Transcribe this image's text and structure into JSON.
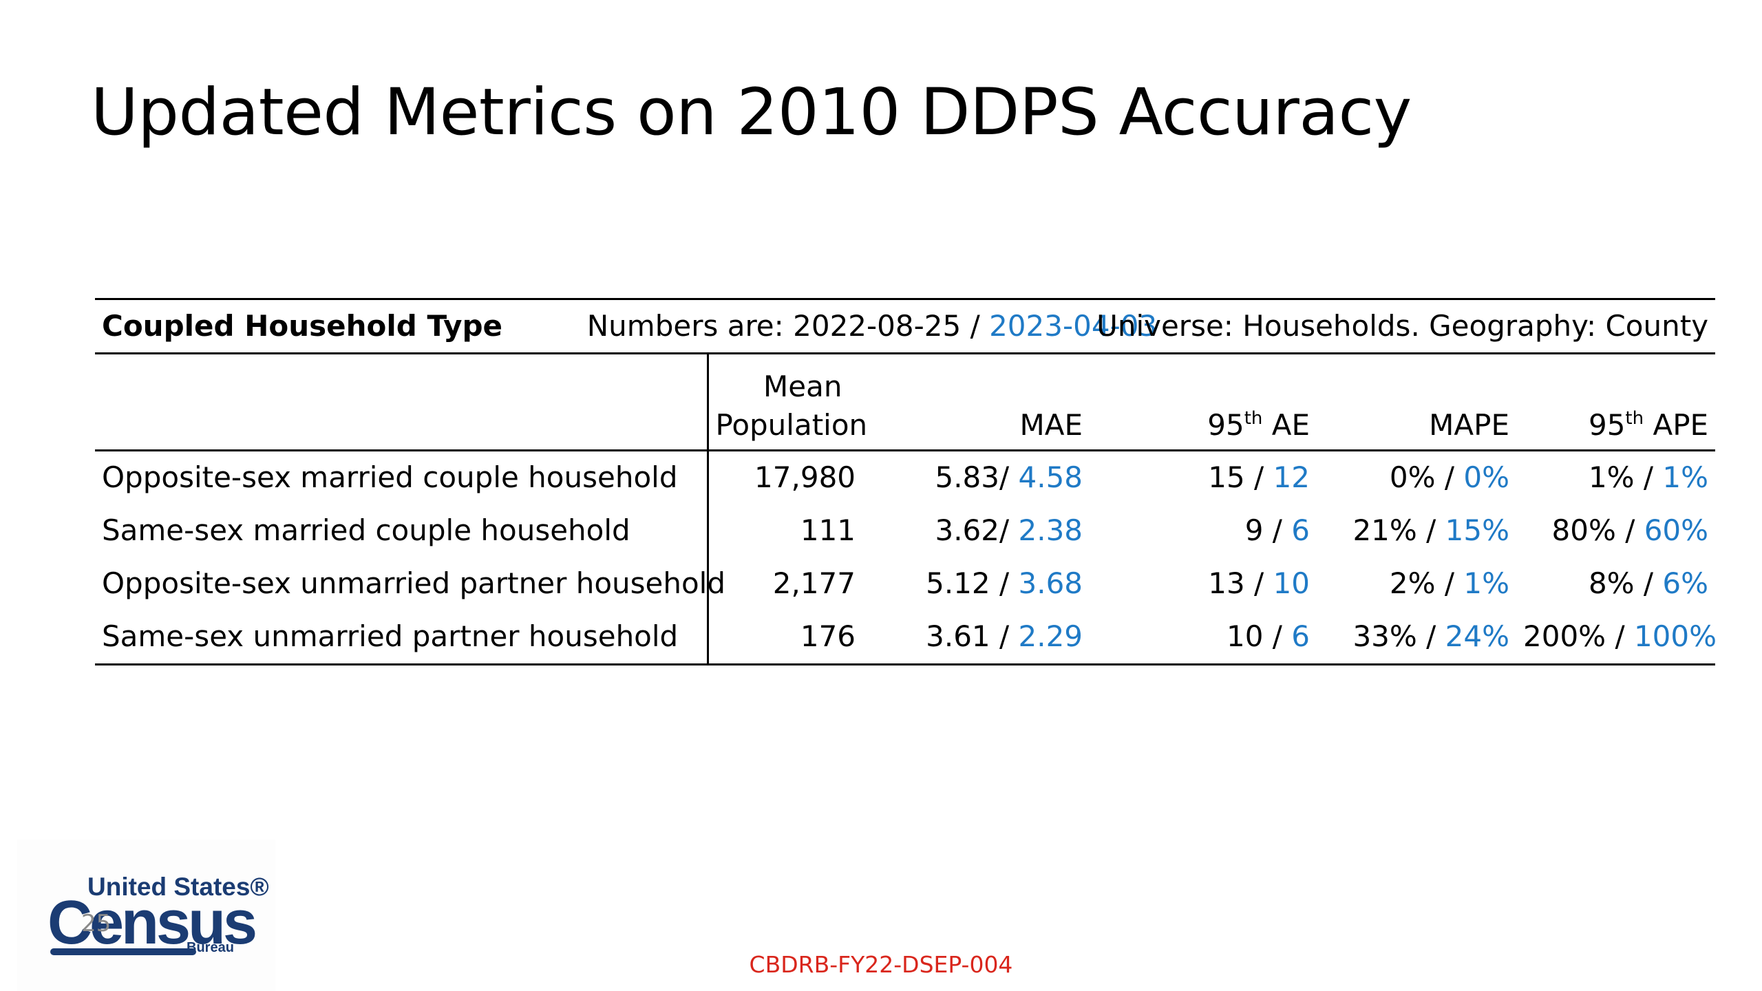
{
  "title": "Updated Metrics on 2010 DDPS Accuracy",
  "table": {
    "header": {
      "type_label": "Coupled Household Type",
      "numbers_prefix": "Numbers are: 2022-08-25 / ",
      "numbers_new_date": "2023-04-03",
      "universe": "Universe: Households. Geography: County"
    },
    "columns": {
      "mean_line1": "Mean",
      "mean_line2": "Population",
      "mae": "MAE",
      "ae95_num": "95",
      "ae95_sup": "th",
      "ae95_label": " AE",
      "mape": "MAPE",
      "ape95_num": "95",
      "ape95_sup": "th",
      "ape95_label": " APE"
    },
    "rows": [
      {
        "type": "Opposite-sex married couple household",
        "mean_population": "17,980",
        "mae_old": "5.83/ ",
        "mae_new": "4.58",
        "ae95_old": "15 / ",
        "ae95_new": "12",
        "mape_old": "0% / ",
        "mape_new": "0%",
        "ape95_old": "1% / ",
        "ape95_new": "1%"
      },
      {
        "type": "Same-sex married couple household",
        "mean_population": "111",
        "mae_old": "3.62/ ",
        "mae_new": "2.38",
        "ae95_old": "9 / ",
        "ae95_new": "6",
        "mape_old": "21% / ",
        "mape_new": "15%",
        "ape95_old": "80% / ",
        "ape95_new": "60%"
      },
      {
        "type": "Opposite-sex unmarried partner household",
        "mean_population": "2,177",
        "mae_old": "5.12 / ",
        "mae_new": "3.68",
        "ae95_old": "13 / ",
        "ae95_new": "10",
        "mape_old": "2% / ",
        "mape_new": "1%",
        "ape95_old": "8% / ",
        "ape95_new": "6%"
      },
      {
        "type": "Same-sex unmarried partner household",
        "mean_population": "176",
        "mae_old": "3.61 / ",
        "mae_new": "2.29",
        "ae95_old": "10 / ",
        "ae95_new": "6",
        "mape_old": "33% / ",
        "mape_new": "24%",
        "ape95_old": "200% / ",
        "ape95_new": "100%"
      }
    ]
  },
  "logo": {
    "line1": "United States®",
    "line2": "Census",
    "line3": "Bureau"
  },
  "page_number": "25",
  "disclosure": "CBDRB-FY22-DSEP-004",
  "colors": {
    "highlight": "#1f7ac6",
    "disclosure": "#d9261c",
    "logo": "#1b3c73"
  }
}
